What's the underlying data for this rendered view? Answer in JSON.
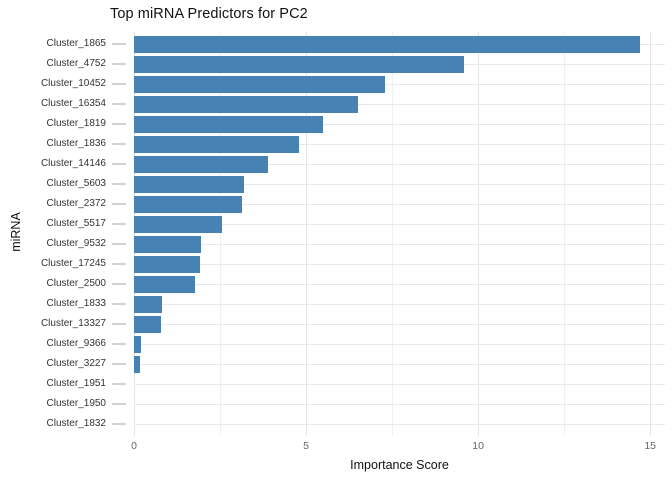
{
  "chart_data": {
    "type": "bar",
    "orientation": "horizontal",
    "title": "Top miRNA Predictors for PC2",
    "xlabel": "Importance Score",
    "ylabel": "miRNA",
    "categories": [
      "Cluster_1865",
      "Cluster_4752",
      "Cluster_10452",
      "Cluster_16354",
      "Cluster_1819",
      "Cluster_1836",
      "Cluster_14146",
      "Cluster_5603",
      "Cluster_2372",
      "Cluster_5517",
      "Cluster_9532",
      "Cluster_17245",
      "Cluster_2500",
      "Cluster_1833",
      "Cluster_13327",
      "Cluster_9366",
      "Cluster_3227",
      "Cluster_1951",
      "Cluster_1950",
      "Cluster_1832"
    ],
    "values": [
      14.7,
      9.6,
      7.3,
      6.5,
      5.5,
      4.8,
      3.9,
      3.2,
      3.15,
      2.55,
      1.96,
      1.93,
      1.78,
      0.82,
      0.79,
      0.21,
      0.18,
      0,
      0,
      0
    ],
    "xlim": [
      0,
      15.43
    ],
    "xticks": [
      0,
      5,
      10,
      15
    ],
    "xtick_labels": [
      "0",
      "5",
      "10",
      "15"
    ],
    "minor_gridlines": [
      2.5,
      7.5,
      12.5
    ],
    "grid": "on",
    "legend": "none",
    "colors": {
      "bar": "#4682b4",
      "major_grid": "#e4e4e4",
      "minor_grid": "#efefef",
      "row_grid": "#e9e9e9",
      "tick_mark": "#d2d2d2",
      "y_tick_text": "#333333",
      "x_tick_text": "#666666",
      "title_text": "#111111"
    }
  }
}
